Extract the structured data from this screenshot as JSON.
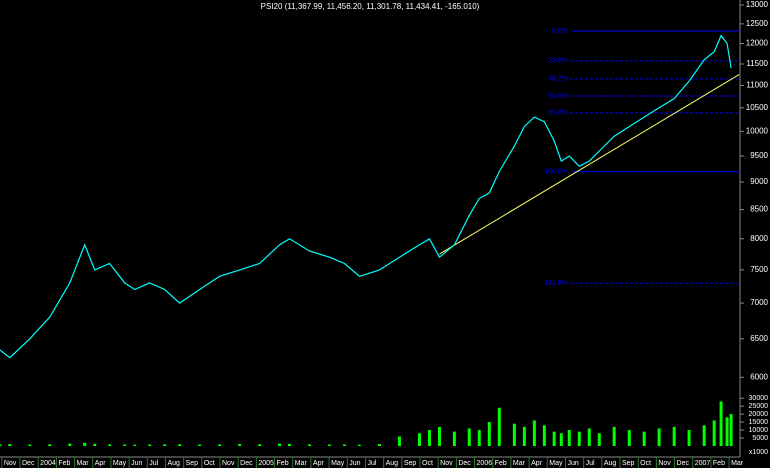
{
  "chart_data": {
    "type": "line",
    "title": "PSI20 (11,367.99, 11,456.20, 11,301.78, 11,434.41, -165.010)",
    "x": [
      -0.1,
      0.44,
      1.54,
      2.64,
      3.74,
      4.56,
      5.11,
      5.93,
      6.76,
      7.31,
      8.13,
      8.96,
      9.78,
      10.88,
      11.98,
      13.08,
      14.18,
      15.27,
      15.82,
      16.92,
      18.02,
      18.85,
      19.67,
      20.77,
      21.87,
      22.97,
      23.52,
      24.07,
      24.89,
      25.71,
      26.26,
      26.81,
      27.36,
      28.19,
      28.74,
      29.29,
      29.84,
      30.38,
      30.77,
      31.21,
      31.76,
      32.31,
      32.86,
      33.68,
      34.51,
      35.33,
      36.15,
      36.98,
      37.8,
      38.63,
      39.18,
      39.56,
      39.89,
      40.11
    ],
    "series": [
      {
        "color": "#00ffff",
        "values": [
          6350,
          6250,
          6500,
          6800,
          7300,
          7900,
          7500,
          7600,
          7300,
          7200,
          7300,
          7200,
          7000,
          7200,
          7400,
          7500,
          7600,
          7900,
          8000,
          7800,
          7700,
          7600,
          7400,
          7500,
          7700,
          7900,
          8000,
          7700,
          7900,
          8400,
          8700,
          8800,
          9200,
          9700,
          10100,
          10300,
          10200,
          9800,
          9400,
          9500,
          9300,
          9400,
          9600,
          9900,
          10100,
          10300,
          10500,
          10700,
          11100,
          11600,
          11800,
          12200,
          12000,
          11400
        ]
      },
      {
        "color": "#00ff00",
        "axis": "y2",
        "values": [
          1000,
          1200,
          900,
          1100,
          1500,
          2000,
          1300,
          1000,
          900,
          800,
          900,
          1000,
          1100,
          900,
          1000,
          1200,
          1100,
          1500,
          1300,
          1000,
          900,
          1000,
          800,
          1200,
          6000,
          8000,
          10000,
          12000,
          9000,
          11000,
          10000,
          15000,
          24000,
          14000,
          12000,
          16000,
          13000,
          9000,
          8000,
          10000,
          9000,
          11000,
          8000,
          12000,
          10000,
          9000,
          11000,
          12000,
          10000,
          13000,
          16000,
          28000,
          18000,
          20000
        ]
      }
    ],
    "xlim": [
      -0.1,
      40.6
    ],
    "xticks": [
      {
        "value": 0,
        "label": "Nov"
      },
      {
        "value": 1,
        "label": "Dec"
      },
      {
        "value": 2,
        "label": "2004"
      },
      {
        "value": 3,
        "label": "Feb"
      },
      {
        "value": 4,
        "label": "Mar"
      },
      {
        "value": 5,
        "label": "Apr"
      },
      {
        "value": 6,
        "label": "May"
      },
      {
        "value": 7,
        "label": "Jun"
      },
      {
        "value": 8,
        "label": "Jul"
      },
      {
        "value": 9,
        "label": "Aug"
      },
      {
        "value": 10,
        "label": "Sep"
      },
      {
        "value": 11,
        "label": "Oct"
      },
      {
        "value": 12,
        "label": "Nov"
      },
      {
        "value": 13,
        "label": "Dec"
      },
      {
        "value": 14,
        "label": "2005"
      },
      {
        "value": 15,
        "label": "Feb"
      },
      {
        "value": 16,
        "label": "Mar"
      },
      {
        "value": 17,
        "label": "Apr"
      },
      {
        "value": 18,
        "label": "May"
      },
      {
        "value": 19,
        "label": "Jun"
      },
      {
        "value": 20,
        "label": "Jul"
      },
      {
        "value": 21,
        "label": "Aug"
      },
      {
        "value": 22,
        "label": "Sep"
      },
      {
        "value": 23,
        "label": "Oct"
      },
      {
        "value": 24,
        "label": "Nov"
      },
      {
        "value": 25,
        "label": "Dec"
      },
      {
        "value": 26,
        "label": "2006"
      },
      {
        "value": 27,
        "label": "Feb"
      },
      {
        "value": 28,
        "label": "Mar"
      },
      {
        "value": 29,
        "label": "Apr"
      },
      {
        "value": 30,
        "label": "May"
      },
      {
        "value": 31,
        "label": "Jun"
      },
      {
        "value": 32,
        "label": "Jul"
      },
      {
        "value": 33,
        "label": "Aug"
      },
      {
        "value": 34,
        "label": "Sep"
      },
      {
        "value": 35,
        "label": "Oct"
      },
      {
        "value": 36,
        "label": "Nov"
      },
      {
        "value": 37,
        "label": "Dec"
      },
      {
        "value": 38,
        "label": "2007"
      },
      {
        "value": 39,
        "label": "Feb"
      },
      {
        "value": 40,
        "label": "Mar"
      }
    ],
    "ylim": [
      5844,
      13135
    ],
    "log_scale": true,
    "yticks": [
      6000,
      6500,
      7000,
      7500,
      8000,
      8500,
      9000,
      9500,
      10000,
      10500,
      11000,
      11500,
      12000,
      12500,
      13000
    ],
    "y2lim": [
      0,
      32000
    ],
    "y2ticks": [
      5000,
      10000,
      15000,
      20000,
      25000,
      30000
    ],
    "y2_unit_label": "x1000",
    "fib_levels": [
      {
        "label": "0.0%",
        "value": 12317
      },
      {
        "label": "23.6%",
        "value": 11576
      },
      {
        "label": "38.2%",
        "value": 11150
      },
      {
        "label": "50.0%",
        "value": 10760
      },
      {
        "label": "61.8%",
        "value": 10390
      },
      {
        "label": "100.0%",
        "value": 9196
      },
      {
        "label": "161.8%",
        "value": 7294
      }
    ],
    "fib_color": "#0000ff",
    "trend_line": {
      "x": [
        24.07,
        40.55
      ],
      "y": [
        7750,
        11250
      ],
      "color": "#ffff66"
    }
  }
}
